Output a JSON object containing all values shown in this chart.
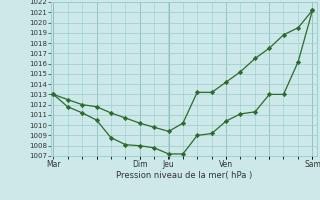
{
  "background_color": "#cce8e8",
  "plot_bg_color": "#cce8e8",
  "grid_color": "#99cccc",
  "line_color": "#2d6a2d",
  "marker_color": "#2d6a2d",
  "ylim": [
    1007,
    1022
  ],
  "ytick_min": 1007,
  "ytick_max": 1021,
  "xlabel": "Pression niveau de la mer( hPa )",
  "series1_x": [
    0,
    0.33,
    0.67,
    1.0,
    1.33,
    1.67,
    2.0,
    2.33,
    2.67,
    3.0,
    3.33,
    3.67,
    4.0,
    4.33,
    4.67,
    5.0,
    5.33,
    5.67,
    6.0
  ],
  "series1_y": [
    1013,
    1011.8,
    1011.2,
    1010.5,
    1008.8,
    1008.1,
    1008.0,
    1007.8,
    1007.2,
    1007.2,
    1009.0,
    1009.2,
    1010.4,
    1011.1,
    1011.3,
    1013.0,
    1013.0,
    1016.2,
    1021.2
  ],
  "series2_x": [
    0,
    0.33,
    0.67,
    1.0,
    1.33,
    1.67,
    2.0,
    2.33,
    2.67,
    3.0,
    3.33,
    3.67,
    4.0,
    4.33,
    4.67,
    5.0,
    5.33,
    5.67,
    6.0
  ],
  "series2_y": [
    1013,
    1012.5,
    1012.0,
    1011.8,
    1011.2,
    1010.7,
    1010.2,
    1009.8,
    1009.4,
    1010.2,
    1013.2,
    1013.2,
    1014.2,
    1015.2,
    1016.5,
    1017.5,
    1018.8,
    1019.5,
    1021.2
  ],
  "xtick_positions": [
    0,
    1.0,
    2.0,
    2.67,
    4.0,
    5.0,
    6.0
  ],
  "xtick_labels": [
    "Mar",
    "",
    "Dim",
    "Jeu",
    "Ven",
    "",
    "Sam"
  ],
  "vline_positions": [
    0,
    1.0,
    2.0,
    2.67,
    4.0,
    5.0,
    6.0
  ]
}
